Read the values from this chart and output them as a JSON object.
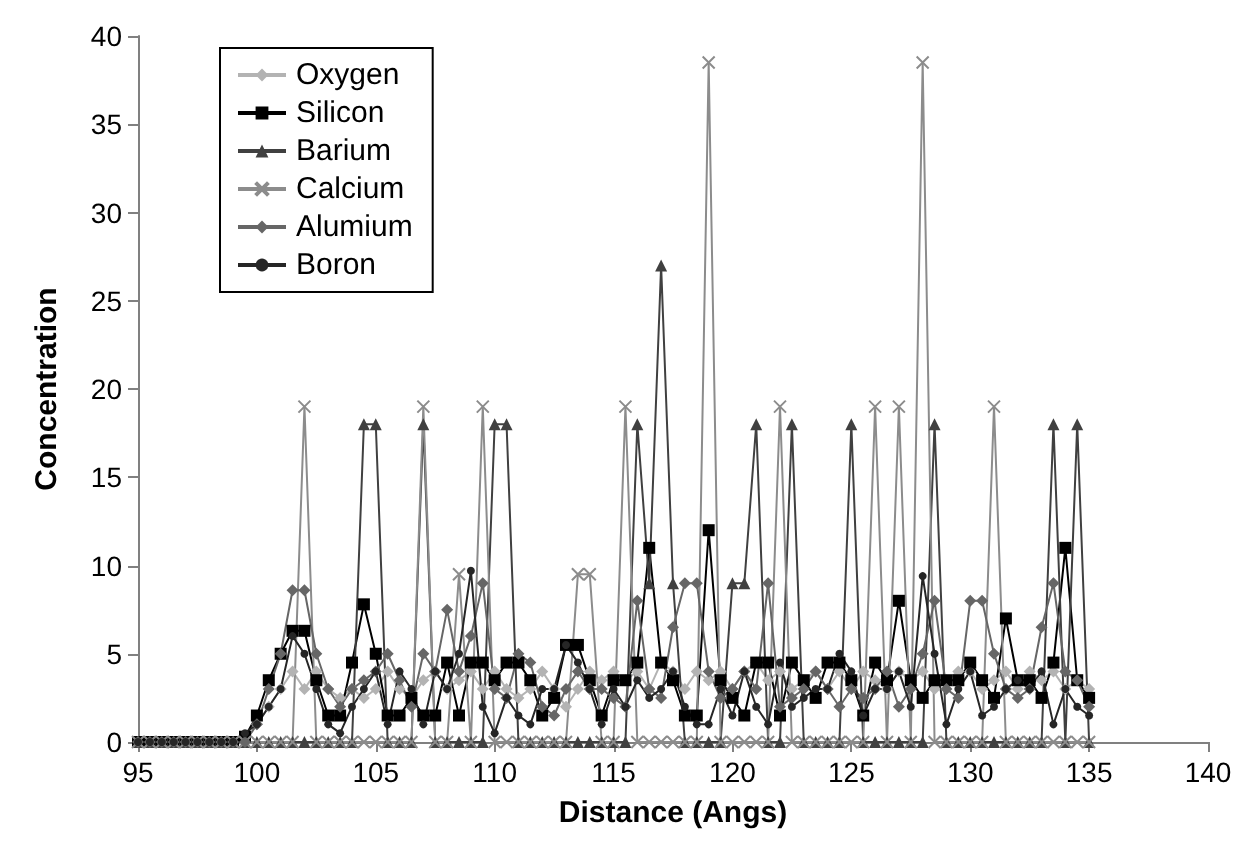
{
  "chart_data": {
    "type": "line",
    "xlabel": "Distance (Angs)",
    "ylabel": "Concentration",
    "x": [
      95,
      95.5,
      96,
      96.5,
      97,
      97.5,
      98,
      98.5,
      99,
      99.5,
      100,
      100.5,
      101,
      101.5,
      102,
      102.5,
      103,
      103.5,
      104,
      104.5,
      105,
      105.5,
      106,
      106.5,
      107,
      107.5,
      108,
      108.5,
      109,
      109.5,
      110,
      110.5,
      111,
      111.5,
      112,
      112.5,
      113,
      113.5,
      114,
      114.5,
      115,
      115.5,
      116,
      116.5,
      117,
      117.5,
      118,
      118.5,
      119,
      119.5,
      120,
      120.5,
      121,
      121.5,
      122,
      122.5,
      123,
      123.5,
      124,
      124.5,
      125,
      125.5,
      126,
      126.5,
      127,
      127.5,
      128,
      128.5,
      129,
      129.5,
      130,
      130.5,
      131,
      131.5,
      132,
      132.5,
      133,
      133.5,
      134,
      134.5,
      135
    ],
    "series": [
      {
        "name": "Oxygen",
        "color": "#b3b3b3",
        "marker": "diamond",
        "values": [
          0,
          0,
          0,
          0,
          0,
          0,
          0,
          0,
          0,
          0,
          1,
          2,
          3,
          4,
          3,
          4,
          3,
          2.5,
          3,
          2.5,
          3,
          4,
          3,
          2.5,
          3.5,
          4,
          3,
          3.5,
          4,
          3,
          4,
          3,
          2.5,
          3,
          4,
          3,
          2,
          3,
          4,
          3.5,
          4,
          3.5,
          4,
          3,
          4.5,
          4,
          3,
          4,
          3.5,
          4,
          3,
          4,
          4.5,
          3.5,
          4,
          3,
          3.5,
          4,
          3,
          4,
          3,
          4,
          3.5,
          3,
          4,
          3.5,
          4,
          3,
          3.5,
          4,
          4,
          3,
          3.5,
          4,
          3,
          4,
          3.5,
          4,
          3,
          3.5,
          3
        ]
      },
      {
        "name": "Silicon",
        "color": "#000000",
        "marker": "square",
        "values": [
          0,
          0,
          0,
          0,
          0,
          0,
          0,
          0,
          0,
          0.3,
          1.5,
          3.5,
          5,
          6.3,
          6.3,
          3.5,
          1.5,
          1.5,
          4.5,
          7.8,
          5,
          1.5,
          1.5,
          2.5,
          1.5,
          1.5,
          4.5,
          1.5,
          4.5,
          4.5,
          3.5,
          4.5,
          4.5,
          3.5,
          1.5,
          2.5,
          5.5,
          5.5,
          3.5,
          1.5,
          3.5,
          3.5,
          4.5,
          11,
          4.5,
          3.5,
          1.5,
          1.5,
          12,
          3.5,
          2.5,
          1.5,
          4.5,
          4.5,
          1.5,
          4.5,
          3.5,
          2.5,
          4.5,
          4.5,
          3.5,
          1.5,
          4.5,
          3.5,
          8,
          3.5,
          2.5,
          3.5,
          3.5,
          3.5,
          4.5,
          3.5,
          2.5,
          7,
          3.5,
          3.5,
          2.5,
          4.5,
          11,
          3.5,
          2.5
        ]
      },
      {
        "name": "Barium",
        "color": "#404040",
        "marker": "triangle",
        "values": [
          0,
          0,
          0,
          0,
          0,
          0,
          0,
          0,
          0,
          0,
          0,
          0,
          0,
          0,
          0,
          0,
          0,
          0,
          0,
          18,
          18,
          0,
          0,
          0,
          18,
          0,
          0,
          0,
          0,
          0,
          18,
          18,
          0,
          0,
          0,
          0,
          0,
          0,
          0,
          0,
          0,
          0,
          18,
          9,
          27,
          9,
          0,
          0,
          0,
          0,
          9,
          9,
          18,
          0,
          0,
          18,
          0,
          0,
          0,
          0,
          18,
          0,
          0,
          0,
          0,
          0,
          0,
          18,
          0,
          0,
          0,
          0,
          0,
          0,
          0,
          0,
          0,
          18,
          0,
          18,
          0
        ]
      },
      {
        "name": "Calcium",
        "color": "#8c8c8c",
        "marker": "cross",
        "values": [
          0,
          0,
          0,
          0,
          0,
          0,
          0,
          0,
          0,
          0,
          0,
          0,
          0,
          0,
          19,
          0,
          0,
          0,
          0,
          0,
          0,
          0,
          0,
          0,
          19,
          0,
          0,
          9.5,
          0,
          19,
          0,
          0,
          0,
          0,
          0,
          0,
          0,
          9.5,
          9.5,
          0,
          0,
          19,
          0,
          0,
          0,
          0,
          0,
          0,
          38.5,
          0,
          0,
          0,
          0,
          0,
          19,
          0,
          0,
          0,
          0,
          0,
          0,
          0,
          19,
          0,
          19,
          0,
          38.5,
          0,
          0,
          0,
          0,
          0,
          19,
          0,
          0,
          0,
          0,
          0,
          0,
          0,
          0
        ]
      },
      {
        "name": "Alumium",
        "color": "#666666",
        "marker": "diamond",
        "values": [
          0,
          0,
          0,
          0,
          0,
          0,
          0,
          0,
          0,
          0,
          1,
          3,
          5,
          8.6,
          8.6,
          5,
          3,
          2,
          3,
          3.5,
          4,
          5,
          3.5,
          2,
          5,
          4,
          7.5,
          4,
          6,
          9,
          3,
          2.5,
          5,
          4.5,
          2,
          1.5,
          3,
          4,
          3,
          3,
          2.5,
          2,
          8,
          3,
          2.5,
          6.5,
          9,
          9,
          4,
          2.5,
          3,
          4,
          3,
          9,
          2,
          2.5,
          3,
          4,
          3,
          2,
          3,
          2.5,
          3,
          4,
          2,
          3,
          5,
          8,
          3,
          2.5,
          8,
          8,
          5,
          3,
          2.5,
          3,
          6.5,
          9,
          4,
          3.5,
          2
        ]
      },
      {
        "name": "Boron",
        "color": "#262626",
        "marker": "circle",
        "values": [
          0,
          0,
          0,
          0,
          0,
          0,
          0,
          0,
          0,
          0.5,
          1,
          2,
          3,
          6,
          5,
          3,
          1,
          0.5,
          2,
          3,
          4,
          1,
          4,
          3,
          1,
          4,
          3,
          5,
          9.7,
          2,
          0.5,
          2.5,
          1.5,
          1,
          3,
          3,
          5.5,
          4.5,
          3,
          1,
          3,
          2,
          3.5,
          2.5,
          3,
          4,
          2,
          1,
          1,
          3,
          1.5,
          4,
          2,
          1,
          4.5,
          2,
          2.5,
          3,
          3,
          5,
          4,
          1.5,
          3,
          3,
          4,
          2,
          9.4,
          5,
          1,
          3,
          4,
          1.5,
          2,
          3,
          3.5,
          3,
          4,
          1,
          3,
          2,
          1.5
        ]
      }
    ],
    "xlim": [
      95,
      140
    ],
    "xticks": [
      95,
      100,
      105,
      110,
      115,
      120,
      125,
      130,
      135,
      140
    ],
    "ylim": [
      0,
      40
    ],
    "yticks": [
      0,
      5,
      10,
      15,
      20,
      25,
      30,
      35,
      40
    ],
    "grid": false,
    "legend": "top left"
  }
}
